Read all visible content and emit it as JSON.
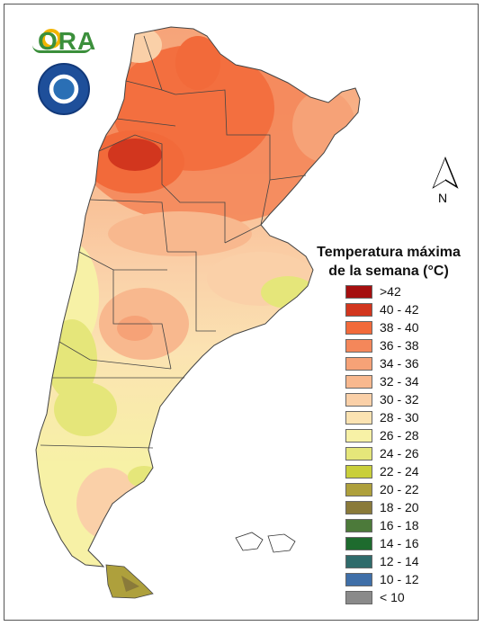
{
  "legend": {
    "title_line1": "Temperatura máxima",
    "title_line2": "de la semana (°C)",
    "classes": [
      {
        "label": ">42",
        "color": "#a50f0f"
      },
      {
        "label": "40 - 42",
        "color": "#d2361e"
      },
      {
        "label": "38 - 40",
        "color": "#f26a3a"
      },
      {
        "label": "36 - 38",
        "color": "#f4875a"
      },
      {
        "label": "34 - 36",
        "color": "#f6a277"
      },
      {
        "label": "32 - 34",
        "color": "#f8b88e"
      },
      {
        "label": "30 - 32",
        "color": "#fad0a8"
      },
      {
        "label": "28 - 30",
        "color": "#fbe3b2"
      },
      {
        "label": "26 - 28",
        "color": "#f7f1a6"
      },
      {
        "label": "24 - 26",
        "color": "#e5e67a"
      },
      {
        "label": "22 - 24",
        "color": "#c9cf3a"
      },
      {
        "label": "20 - 22",
        "color": "#aea03c"
      },
      {
        "label": "18 - 20",
        "color": "#8a7a3a"
      },
      {
        "label": "16 - 18",
        "color": "#4c7a3a"
      },
      {
        "label": "14 - 16",
        "color": "#1e6b2e"
      },
      {
        "label": "12 - 14",
        "color": "#2f6b6b"
      },
      {
        "label": "10 - 12",
        "color": "#3f6fa8"
      },
      {
        "label": "< 10",
        "color": "#8a8a8a"
      }
    ]
  },
  "north_arrow": {
    "label": "N"
  },
  "logos": {
    "ora": "ORA"
  }
}
